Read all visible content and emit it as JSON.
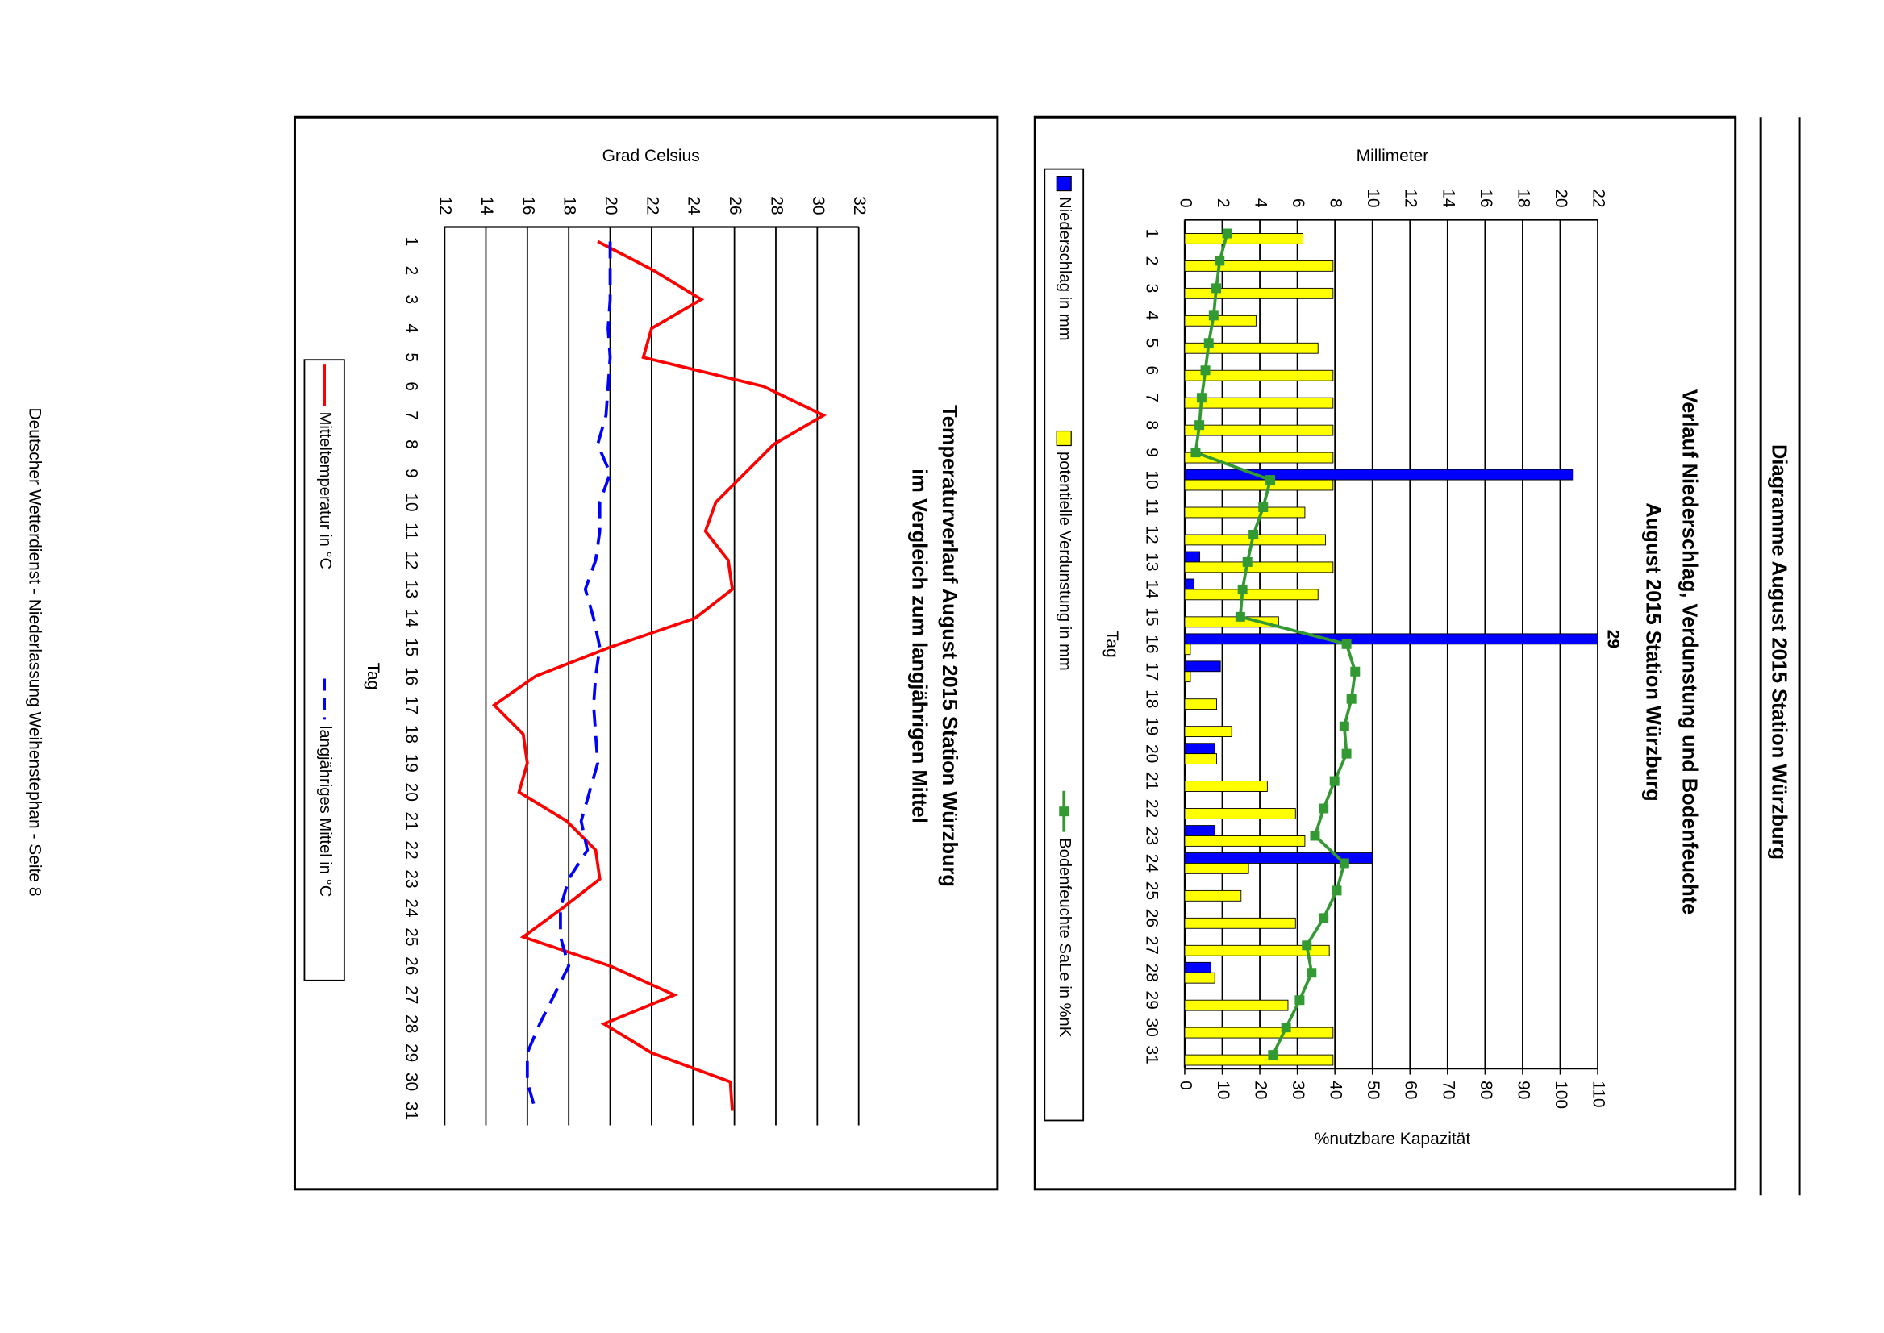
{
  "page": {
    "title": "Diagramme August 2015 Station Würzburg",
    "footer": "Deutscher Wetterdienst - Niederlassung Weihenstephan - Seite 8"
  },
  "chart_data": [
    {
      "type": "bar_line",
      "title": "Verlauf Niederschlag, Verdunstung und Bodenfeuchte",
      "subtitle": "August 2015 Station Würzburg",
      "x_label": "Tag",
      "y_label": "Millimeter",
      "y2_label": "%nutzbare Kapazität",
      "categories": [
        "1",
        "2",
        "3",
        "4",
        "5",
        "6",
        "7",
        "8",
        "9",
        "10",
        "11",
        "12",
        "13",
        "14",
        "15",
        "16",
        "17",
        "18",
        "19",
        "20",
        "21",
        "22",
        "23",
        "24",
        "25",
        "26",
        "27",
        "28",
        "29",
        "30",
        "31"
      ],
      "series": [
        {
          "name": "Niederschlag in mm",
          "type": "bar",
          "color": "#0000ff",
          "values": [
            0,
            0,
            0,
            0,
            0,
            0,
            0,
            0,
            0,
            20.7,
            0,
            0,
            0.8,
            0.5,
            0,
            29,
            1.9,
            0,
            0,
            1.6,
            0,
            0,
            1.6,
            10.0,
            0,
            0,
            0,
            1.4,
            0,
            0,
            0
          ]
        },
        {
          "name": "potentielle Verdunstung in mm",
          "type": "bar",
          "color": "#ffff00",
          "values": [
            6.3,
            7.9,
            7.9,
            3.8,
            7.1,
            7.9,
            7.9,
            7.9,
            7.9,
            7.9,
            6.4,
            7.5,
            7.9,
            7.1,
            5.0,
            0.3,
            0.3,
            1.7,
            2.5,
            1.7,
            4.4,
            5.9,
            6.4,
            3.4,
            3.0,
            5.9,
            7.7,
            1.6,
            5.5,
            7.9,
            7.9
          ]
        },
        {
          "name": "Bodenfeuchte SaLe in %nK",
          "type": "line",
          "axis": "y2",
          "color": "#339933",
          "marker": "square",
          "values": [
            11.3,
            9.3,
            8.4,
            7.7,
            6.4,
            5.5,
            4.5,
            3.9,
            2.9,
            22.8,
            20.9,
            18.3,
            16.7,
            15.4,
            14.8,
            43.1,
            45.4,
            44.4,
            42.5,
            43.1,
            39.9,
            37.0,
            34.7,
            42.5,
            40.5,
            37.0,
            32.5,
            33.8,
            30.6,
            27.0,
            23.5
          ]
        }
      ],
      "ylim": [
        0,
        22
      ],
      "yticks": [
        0,
        2,
        4,
        6,
        8,
        10,
        12,
        14,
        16,
        18,
        20,
        22
      ],
      "y2lim": [
        0,
        110
      ],
      "y2ticks": [
        0,
        10,
        20,
        30,
        40,
        50,
        60,
        70,
        80,
        90,
        100,
        110
      ],
      "grid": true,
      "legend": "bottom"
    },
    {
      "type": "line",
      "title": "Temperaturverlauf August 2015 Station Würzburg",
      "subtitle": "im Vergleich zum langjährigen Mittel",
      "x_label": "Tag",
      "y_label": "Grad Celsius",
      "categories": [
        "1",
        "2",
        "3",
        "4",
        "5",
        "6",
        "7",
        "8",
        "9",
        "10",
        "11",
        "12",
        "13",
        "14",
        "15",
        "16",
        "17",
        "18",
        "19",
        "20",
        "21",
        "22",
        "23",
        "24",
        "25",
        "26",
        "27",
        "28",
        "29",
        "30",
        "31"
      ],
      "series": [
        {
          "name": "Mitteltemperatur in °C",
          "type": "line",
          "color": "#ff0000",
          "values": [
            19.4,
            22.1,
            24.4,
            22.0,
            21.6,
            27.4,
            30.3,
            27.9,
            26.5,
            25.1,
            24.6,
            25.7,
            25.9,
            24.1,
            20.0,
            16.4,
            14.4,
            15.8,
            16.0,
            15.6,
            17.9,
            19.3,
            19.5,
            17.7,
            15.8,
            20.0,
            23.1,
            19.7,
            22.0,
            25.8,
            25.9
          ]
        },
        {
          "name": "langjähriges Mittel in °C",
          "type": "line",
          "color": "#0000ff",
          "dash": true,
          "values": [
            20.0,
            20.0,
            20.0,
            19.9,
            20.0,
            19.9,
            19.8,
            19.4,
            20.0,
            19.5,
            19.5,
            19.3,
            18.8,
            19.2,
            19.5,
            19.3,
            19.2,
            19.3,
            19.4,
            19.0,
            18.6,
            18.9,
            18.0,
            17.6,
            17.6,
            18.0,
            17.3,
            16.6,
            16.0,
            16.0,
            16.4
          ]
        }
      ],
      "ylim": [
        12,
        32
      ],
      "yticks": [
        12,
        14,
        16,
        18,
        20,
        22,
        24,
        26,
        28,
        30,
        32
      ],
      "grid": true,
      "legend": "bottom"
    }
  ]
}
